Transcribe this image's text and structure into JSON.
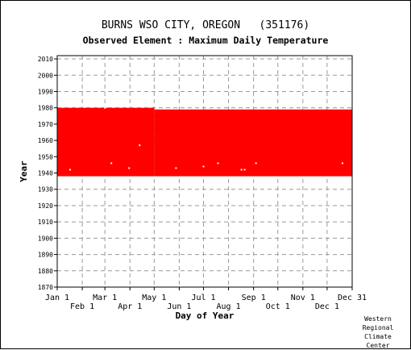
{
  "title": "BURNS WSO CITY, OREGON   (351176)",
  "subtitle": "Observed Element : Maximum Daily Temperature",
  "credit": [
    "Western",
    "Regional",
    "Climate",
    "Center"
  ],
  "chart_data": {
    "type": "area",
    "title": "BURNS WSO CITY, OREGON   (351176)",
    "subtitle": "Observed Element : Maximum Daily Temperature",
    "xlabel": "Day of Year",
    "ylabel": "Year",
    "xlim": [
      1,
      366
    ],
    "ylim": [
      1870,
      2012
    ],
    "grid": true,
    "x_ticks_top": [
      {
        "label": "Jan 1",
        "day": 1
      },
      {
        "label": "Mar 1",
        "day": 60
      },
      {
        "label": "May 1",
        "day": 121
      },
      {
        "label": "Jul 1",
        "day": 182
      },
      {
        "label": "Sep 1",
        "day": 244
      },
      {
        "label": "Nov 1",
        "day": 305
      },
      {
        "label": "Dec 31",
        "day": 366
      }
    ],
    "x_ticks_bottom": [
      {
        "label": "Feb 1",
        "day": 32
      },
      {
        "label": "Apr 1",
        "day": 91
      },
      {
        "label": "Jun 1",
        "day": 152
      },
      {
        "label": "Aug 1",
        "day": 213
      },
      {
        "label": "Oct 1",
        "day": 274
      },
      {
        "label": "Dec 1",
        "day": 335
      }
    ],
    "y_ticks": [
      1870,
      1880,
      1890,
      1900,
      1910,
      1920,
      1930,
      1940,
      1950,
      1960,
      1970,
      1980,
      1990,
      2000,
      2010
    ],
    "series": [
      {
        "color": "#ff0000",
        "segments": [
          {
            "day_start": 1,
            "day_end": 121,
            "year_start": 1938,
            "year_end": 1980
          },
          {
            "day_start": 121,
            "day_end": 366,
            "year_start": 1938,
            "year_end": 1979
          }
        ],
        "gaps": [
          {
            "day": 17,
            "year": 1942
          },
          {
            "day": 60,
            "year": 1980
          },
          {
            "day": 68,
            "year": 1946
          },
          {
            "day": 90,
            "year": 1943
          },
          {
            "day": 103,
            "year": 1957
          },
          {
            "day": 148,
            "year": 1943
          },
          {
            "day": 182,
            "year": 1944
          },
          {
            "day": 200,
            "year": 1946
          },
          {
            "day": 229,
            "year": 1942
          },
          {
            "day": 233,
            "year": 1942
          },
          {
            "day": 247,
            "year": 1946
          },
          {
            "day": 354,
            "year": 1946
          }
        ]
      }
    ]
  }
}
